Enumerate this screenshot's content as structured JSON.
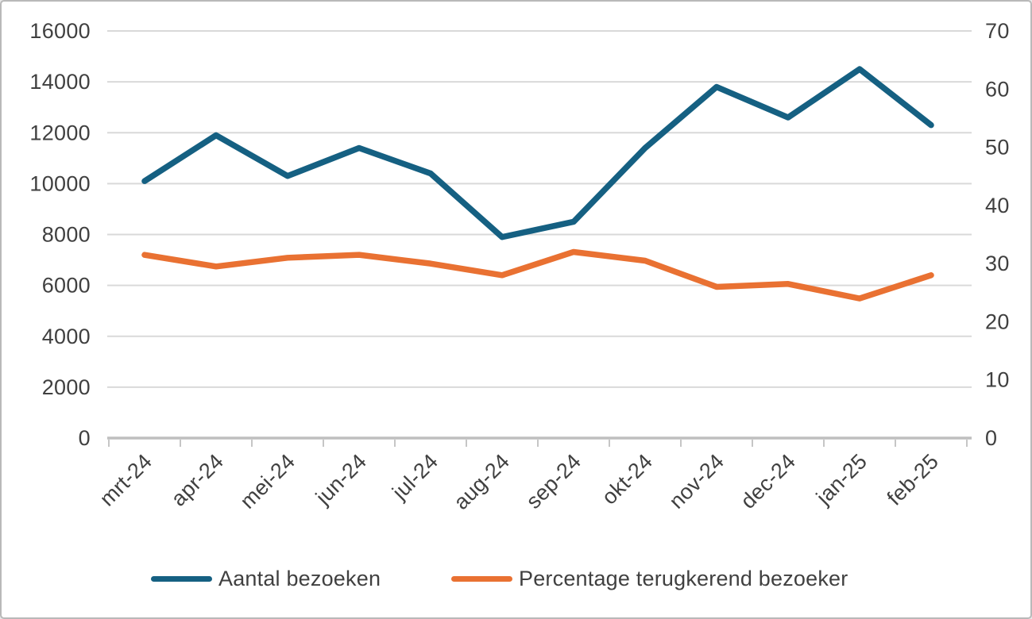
{
  "chart_data": {
    "type": "line",
    "title": "",
    "categories": [
      "mrt-24",
      "apr-24",
      "mei-24",
      "jun-24",
      "jul-24",
      "aug-24",
      "sep-24",
      "okt-24",
      "nov-24",
      "dec-24",
      "jan-25",
      "feb-25"
    ],
    "series": [
      {
        "name": "Aantal bezoeken",
        "axis": "left",
        "color": "#156082",
        "values": [
          10100,
          11900,
          10300,
          11400,
          10400,
          7900,
          8500,
          11400,
          13800,
          12600,
          14500,
          12300
        ]
      },
      {
        "name": "Percentage terugkerend bezoeker",
        "axis": "right",
        "color": "#E97132",
        "values": [
          31.5,
          29.5,
          31,
          31.5,
          30,
          28,
          32,
          30.5,
          26,
          26.5,
          24,
          28
        ]
      }
    ],
    "left_axis": {
      "min": 0,
      "max": 16000,
      "step": 2000,
      "ticks": [
        "16000",
        "14000",
        "12000",
        "10000",
        "8000",
        "6000",
        "4000",
        "2000",
        "0"
      ]
    },
    "right_axis": {
      "min": 0,
      "max": 70,
      "step": 10,
      "ticks": [
        "70",
        "60",
        "50",
        "40",
        "30",
        "20",
        "10",
        "0"
      ]
    },
    "grid": true,
    "legend_position": "bottom",
    "x_label_rotation_deg": -45,
    "colors": {
      "gridline": "#D9D9D9",
      "axis_line": "#BFBFBF",
      "tick_mark": "#C6C6C6",
      "label_text": "#404040",
      "background": "#FFFFFF",
      "frame_border": "#B9B9B9"
    }
  }
}
